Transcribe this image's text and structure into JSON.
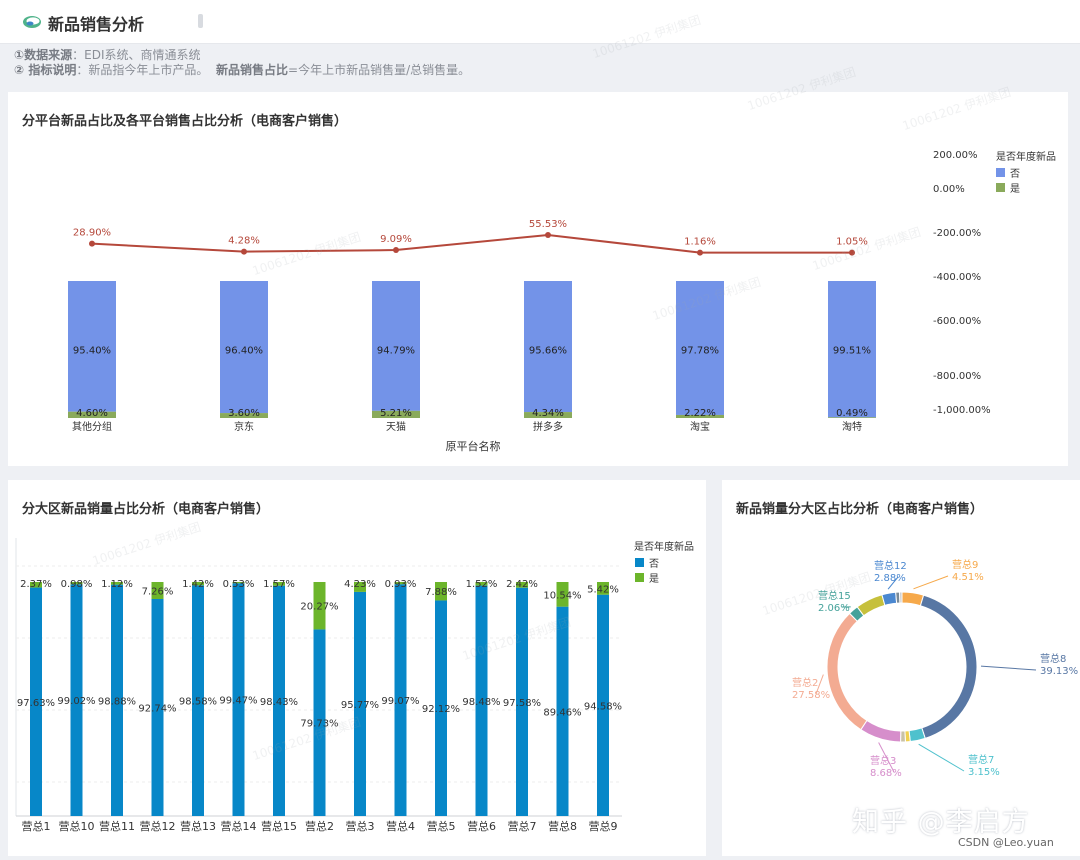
{
  "header": {
    "title": "新品销售分析",
    "note_source_label": "①数据来源",
    "note_source_text": "：EDI系统、商情通系统",
    "note_def_label": "② 指标说明",
    "note_def_text": "：新品指今年上市产品。",
    "note_def_label2": "新品销售占比",
    "note_def_text2": "=今年上市新品销售量/总销售量。"
  },
  "watermark": "10061202 伊利集团",
  "footer": {
    "zhihu": "知乎 @李启方",
    "csdn": "CSDN @Leo.yuan"
  },
  "colors": {
    "no": "#7393e8",
    "yes": "#8aaa5b",
    "line": "#b5483b",
    "no2": "#0787c8",
    "yes2": "#6cb52b"
  },
  "chart_data": [
    {
      "type": "bar",
      "title": "分平台新品占比及各平台销售占比分析（电商客户销售）",
      "xlabel": "原平台名称",
      "categories": [
        "其他分组",
        "京东",
        "天猫",
        "拼多多",
        "淘宝",
        "淘特"
      ],
      "stacked": true,
      "legend_title": "是否年度新品",
      "legend_position": "top-right",
      "series": [
        {
          "name": "否",
          "values": [
            95.4,
            96.4,
            94.79,
            95.66,
            97.78,
            99.51
          ]
        },
        {
          "name": "是",
          "values": [
            4.6,
            3.6,
            5.21,
            4.34,
            2.22,
            0.49
          ]
        }
      ],
      "bar_labels": {
        "否": [
          "95.40%",
          "96.40%",
          "94.79%",
          "95.66%",
          "97.78%",
          "99.51%"
        ],
        "是": [
          "4.60%",
          "3.60%",
          "5.21%",
          "4.34%",
          "2.22%",
          "0.49%"
        ]
      },
      "line": {
        "values": [
          28.9,
          4.28,
          9.09,
          55.53,
          1.16,
          1.05
        ],
        "labels": [
          "28.90%",
          "4.28%",
          "9.09%",
          "55.53%",
          "1.16%",
          "1.05%"
        ]
      },
      "y2_ticks": [
        "200.00%",
        "0.00%",
        "-200.00%",
        "-400.00%",
        "-600.00%",
        "-800.00%",
        "-1,000.00%"
      ],
      "y2_tick_values": [
        200,
        0,
        -200,
        -400,
        -600,
        -800,
        -1000
      ]
    },
    {
      "type": "bar",
      "title": "分大区新品销量占比分析（电商客户销售）",
      "categories": [
        "营总1",
        "营总10",
        "营总11",
        "营总12",
        "营总13",
        "营总14",
        "营总15",
        "营总2",
        "营总3",
        "营总4",
        "营总5",
        "营总6",
        "营总7",
        "营总8",
        "营总9"
      ],
      "stacked": true,
      "legend_title": "是否年度新品",
      "legend_position": "top-right",
      "series": [
        {
          "name": "否",
          "values": [
            97.63,
            99.02,
            98.88,
            92.74,
            98.58,
            99.47,
            98.43,
            79.73,
            95.77,
            99.07,
            92.12,
            98.48,
            97.58,
            89.46,
            94.58
          ]
        },
        {
          "name": "是",
          "values": [
            2.37,
            0.98,
            1.12,
            7.26,
            1.42,
            0.53,
            1.57,
            20.27,
            4.23,
            0.93,
            7.88,
            1.52,
            2.42,
            10.54,
            5.42
          ]
        }
      ],
      "bar_labels": {
        "否": [
          "97.63%",
          "99.02%",
          "98.88%",
          "92.74%",
          "98.58%",
          "99.47%",
          "98.43%",
          "79.73%",
          "95.77%",
          "99.07%",
          "92.12%",
          "98.48%",
          "97.58%",
          "89.46%",
          "94.58%"
        ],
        "是": [
          "2.37%",
          "0.98%",
          "1.12%",
          "7.26%",
          "1.42%",
          "0.53%",
          "1.57%",
          "20.27%",
          "4.23%",
          "0.93%",
          "7.88%",
          "1.52%",
          "2.42%",
          "10.54%",
          "5.42%"
        ]
      }
    },
    {
      "type": "pie",
      "title": "新品销量分大区占比分析（电商客户销售）",
      "donut": true,
      "slices": [
        {
          "name": "营总9",
          "value": 4.51,
          "label": "4.51%",
          "color": "#f6a94b",
          "show": true
        },
        {
          "name": "营总8",
          "value": 39.13,
          "label": "39.13%",
          "color": "#5877a4",
          "show": true
        },
        {
          "name": "营总7",
          "value": 3.15,
          "label": "3.15%",
          "color": "#4fc1cd",
          "show": true
        },
        {
          "name": "",
          "value": 1.0,
          "color": "#f0d050",
          "show": false
        },
        {
          "name": "",
          "value": 1.0,
          "color": "#c9c2a6",
          "show": false
        },
        {
          "name": "营总3",
          "value": 8.68,
          "label": "8.68%",
          "color": "#d68ecb",
          "show": true
        },
        {
          "name": "营总2",
          "value": 27.58,
          "label": "27.58%",
          "color": "#f3ab92",
          "show": true
        },
        {
          "name": "营总15",
          "value": 2.06,
          "label": "2.06%",
          "color": "#45a29a",
          "show": true
        },
        {
          "name": "",
          "value": 5.7,
          "color": "#c6c03c",
          "show": false
        },
        {
          "name": "营总12",
          "value": 2.88,
          "label": "2.88%",
          "color": "#4b88d0",
          "show": true
        },
        {
          "name": "",
          "value": 0.8,
          "color": "#7a8a97",
          "show": false
        },
        {
          "name": "",
          "value": 0.5,
          "color": "#c9c9c9",
          "show": false
        }
      ]
    }
  ]
}
